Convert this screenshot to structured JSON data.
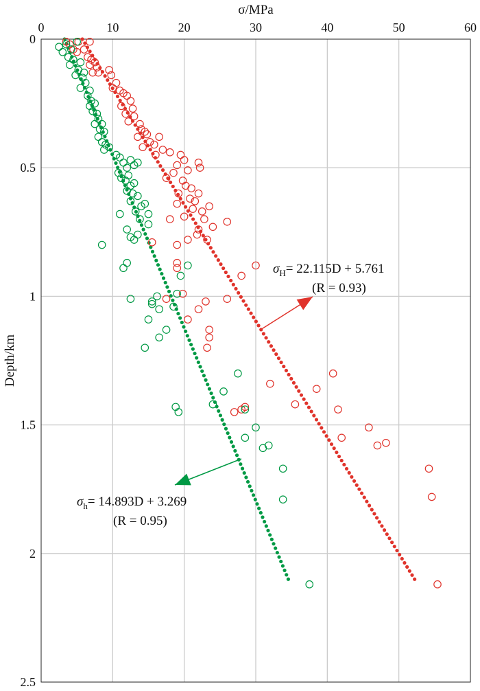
{
  "chart_data": {
    "type": "scatter",
    "title": "",
    "xlabel": "σ/MPa",
    "ylabel": "Depth/km",
    "xlim": [
      0,
      60
    ],
    "ylim": [
      0,
      2.5
    ],
    "y_inverted": true,
    "x_axis_position": "top",
    "grid": true,
    "x_ticks": [
      "0",
      "10",
      "20",
      "30",
      "40",
      "50",
      "60"
    ],
    "y_ticks": [
      "0",
      "0.5",
      "1",
      "1.5",
      "2",
      "2.5"
    ],
    "colors": {
      "sigma_H": "#e0332b",
      "sigma_h": "#009944"
    },
    "series": [
      {
        "name": "σH",
        "marker": "open-circle",
        "color": "#e0332b",
        "points": [
          [
            3.5,
            0.01
          ],
          [
            4.0,
            0.02
          ],
          [
            5.2,
            0.01
          ],
          [
            6.8,
            0.01
          ],
          [
            4.5,
            0.04
          ],
          [
            5.0,
            0.05
          ],
          [
            6.0,
            0.04
          ],
          [
            6.5,
            0.07
          ],
          [
            7.0,
            0.08
          ],
          [
            6.8,
            0.1
          ],
          [
            7.5,
            0.09
          ],
          [
            7.8,
            0.11
          ],
          [
            8.0,
            0.13
          ],
          [
            7.2,
            0.13
          ],
          [
            9.5,
            0.12
          ],
          [
            9.8,
            0.14
          ],
          [
            10.5,
            0.17
          ],
          [
            10.0,
            0.19
          ],
          [
            11.0,
            0.2
          ],
          [
            11.5,
            0.21
          ],
          [
            12.0,
            0.22
          ],
          [
            12.5,
            0.24
          ],
          [
            11.2,
            0.26
          ],
          [
            12.8,
            0.27
          ],
          [
            11.8,
            0.29
          ],
          [
            13.0,
            0.3
          ],
          [
            12.2,
            0.32
          ],
          [
            13.8,
            0.33
          ],
          [
            14.0,
            0.35
          ],
          [
            14.5,
            0.36
          ],
          [
            13.5,
            0.38
          ],
          [
            14.8,
            0.37
          ],
          [
            15.2,
            0.4
          ],
          [
            14.2,
            0.42
          ],
          [
            16.5,
            0.38
          ],
          [
            15.8,
            0.41
          ],
          [
            17.0,
            0.43
          ],
          [
            16.0,
            0.45
          ],
          [
            18.0,
            0.44
          ],
          [
            19.5,
            0.45
          ],
          [
            20.0,
            0.47
          ],
          [
            19.0,
            0.49
          ],
          [
            22.0,
            0.48
          ],
          [
            22.2,
            0.5
          ],
          [
            20.5,
            0.51
          ],
          [
            18.5,
            0.52
          ],
          [
            17.5,
            0.54
          ],
          [
            19.8,
            0.55
          ],
          [
            20.2,
            0.57
          ],
          [
            21.0,
            0.58
          ],
          [
            19.2,
            0.6
          ],
          [
            22.0,
            0.6
          ],
          [
            20.8,
            0.62
          ],
          [
            21.5,
            0.63
          ],
          [
            19.0,
            0.64
          ],
          [
            21.2,
            0.66
          ],
          [
            22.5,
            0.67
          ],
          [
            23.5,
            0.65
          ],
          [
            20.0,
            0.69
          ],
          [
            22.8,
            0.7
          ],
          [
            26.0,
            0.71
          ],
          [
            18.0,
            0.7
          ],
          [
            24.0,
            0.73
          ],
          [
            22.0,
            0.74
          ],
          [
            21.8,
            0.76
          ],
          [
            23.2,
            0.78
          ],
          [
            20.5,
            0.78
          ],
          [
            19.0,
            0.8
          ],
          [
            15.5,
            0.79
          ],
          [
            30.0,
            0.88
          ],
          [
            19.0,
            0.87
          ],
          [
            19.0,
            0.89
          ],
          [
            28.0,
            0.92
          ],
          [
            19.8,
            0.99
          ],
          [
            17.5,
            1.01
          ],
          [
            23.0,
            1.02
          ],
          [
            26.0,
            1.01
          ],
          [
            22.0,
            1.05
          ],
          [
            20.5,
            1.09
          ],
          [
            23.5,
            1.13
          ],
          [
            23.5,
            1.16
          ],
          [
            23.2,
            1.2
          ],
          [
            32.0,
            1.34
          ],
          [
            40.8,
            1.3
          ],
          [
            38.5,
            1.36
          ],
          [
            28.5,
            1.43
          ],
          [
            28.0,
            1.44
          ],
          [
            27.0,
            1.45
          ],
          [
            35.5,
            1.42
          ],
          [
            41.5,
            1.44
          ],
          [
            45.8,
            1.51
          ],
          [
            42.0,
            1.55
          ],
          [
            48.2,
            1.57
          ],
          [
            47.0,
            1.58
          ],
          [
            54.2,
            1.67
          ],
          [
            54.6,
            1.78
          ],
          [
            55.4,
            2.12
          ]
        ],
        "fit": {
          "label": "σH= 22.115D + 5.761",
          "formula_prefix": "σ",
          "formula_sub": "H",
          "formula_body": "= 22.115D + 5.761",
          "r_label": "(R = 0.93)",
          "slope": 22.115,
          "intercept": 5.761,
          "depth_range": [
            0,
            2.1
          ]
        }
      },
      {
        "name": "σh",
        "marker": "open-circle",
        "color": "#009944",
        "points": [
          [
            2.5,
            0.03
          ],
          [
            3.0,
            0.05
          ],
          [
            3.5,
            0.02
          ],
          [
            4.2,
            0.04
          ],
          [
            5.0,
            0.01
          ],
          [
            3.8,
            0.07
          ],
          [
            4.5,
            0.08
          ],
          [
            4.0,
            0.1
          ],
          [
            5.5,
            0.09
          ],
          [
            5.2,
            0.12
          ],
          [
            4.8,
            0.14
          ],
          [
            6.0,
            0.13
          ],
          [
            5.8,
            0.15
          ],
          [
            6.2,
            0.17
          ],
          [
            5.5,
            0.19
          ],
          [
            6.8,
            0.2
          ],
          [
            6.5,
            0.22
          ],
          [
            7.0,
            0.24
          ],
          [
            6.8,
            0.26
          ],
          [
            7.5,
            0.25
          ],
          [
            7.2,
            0.28
          ],
          [
            7.8,
            0.29
          ],
          [
            8.0,
            0.31
          ],
          [
            7.5,
            0.33
          ],
          [
            8.5,
            0.33
          ],
          [
            8.2,
            0.35
          ],
          [
            8.8,
            0.36
          ],
          [
            8.0,
            0.38
          ],
          [
            8.5,
            0.4
          ],
          [
            9.0,
            0.41
          ],
          [
            8.8,
            0.43
          ],
          [
            9.5,
            0.42
          ],
          [
            10.5,
            0.45
          ],
          [
            11.0,
            0.46
          ],
          [
            11.5,
            0.48
          ],
          [
            12.0,
            0.5
          ],
          [
            12.5,
            0.47
          ],
          [
            13.0,
            0.49
          ],
          [
            13.5,
            0.48
          ],
          [
            10.8,
            0.52
          ],
          [
            11.2,
            0.54
          ],
          [
            12.2,
            0.53
          ],
          [
            11.8,
            0.55
          ],
          [
            12.5,
            0.57
          ],
          [
            13.0,
            0.56
          ],
          [
            12.0,
            0.59
          ],
          [
            12.8,
            0.6
          ],
          [
            13.5,
            0.61
          ],
          [
            12.5,
            0.63
          ],
          [
            14.0,
            0.65
          ],
          [
            14.5,
            0.64
          ],
          [
            13.2,
            0.67
          ],
          [
            15.0,
            0.68
          ],
          [
            13.8,
            0.7
          ],
          [
            11.0,
            0.68
          ],
          [
            15.0,
            0.72
          ],
          [
            12.0,
            0.74
          ],
          [
            13.5,
            0.76
          ],
          [
            12.5,
            0.77
          ],
          [
            13.0,
            0.78
          ],
          [
            8.5,
            0.8
          ],
          [
            12.0,
            0.87
          ],
          [
            11.5,
            0.89
          ],
          [
            20.5,
            0.88
          ],
          [
            19.5,
            0.92
          ],
          [
            19.0,
            0.99
          ],
          [
            16.2,
            1.0
          ],
          [
            12.5,
            1.01
          ],
          [
            15.5,
            1.02
          ],
          [
            15.5,
            1.03
          ],
          [
            18.5,
            1.04
          ],
          [
            16.5,
            1.05
          ],
          [
            15.0,
            1.09
          ],
          [
            17.5,
            1.13
          ],
          [
            16.5,
            1.16
          ],
          [
            14.5,
            1.2
          ],
          [
            27.5,
            1.3
          ],
          [
            25.5,
            1.37
          ],
          [
            24.0,
            1.42
          ],
          [
            18.8,
            1.43
          ],
          [
            19.2,
            1.45
          ],
          [
            28.5,
            1.44
          ],
          [
            30.0,
            1.51
          ],
          [
            28.5,
            1.55
          ],
          [
            31.8,
            1.58
          ],
          [
            31.0,
            1.59
          ],
          [
            33.8,
            1.67
          ],
          [
            33.8,
            1.79
          ],
          [
            37.5,
            2.12
          ]
        ],
        "fit": {
          "label": "σh= 14.893D + 3.269",
          "formula_prefix": "σ",
          "formula_sub": "h",
          "formula_body": "= 14.893D + 3.269",
          "r_label": "(R = 0.95)",
          "slope": 14.893,
          "intercept": 3.269,
          "depth_range": [
            0,
            2.1
          ]
        }
      }
    ]
  }
}
